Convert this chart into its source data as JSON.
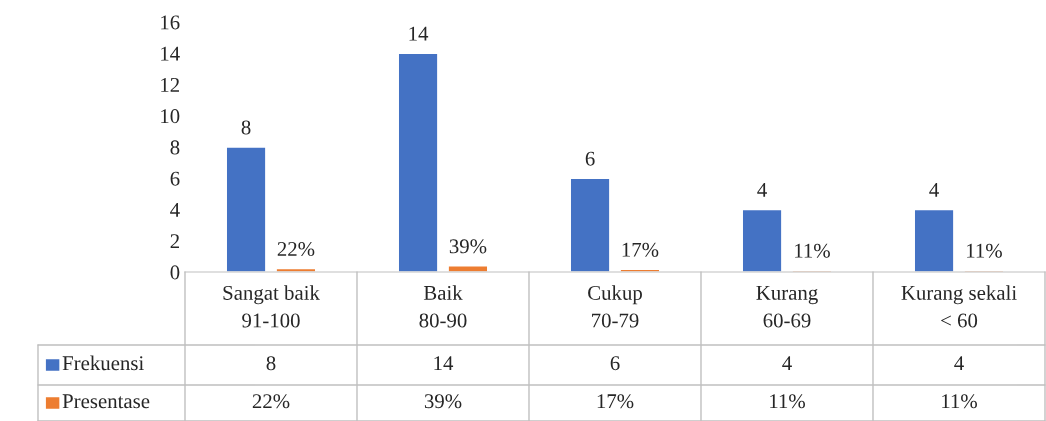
{
  "chart_data": {
    "type": "bar",
    "categories": [
      "Sangat baik\n91-100",
      "Baik\n80-90",
      "Cukup\n70-79",
      "Kurang\n60-69",
      "Kurang sekali\n< 60"
    ],
    "series": [
      {
        "name": "Frekuensi",
        "color": "#4472c4",
        "values": [
          8,
          14,
          6,
          4,
          4
        ],
        "value_labels": [
          "8",
          "14",
          "6",
          "4",
          "4"
        ]
      },
      {
        "name": "Presentase",
        "color": "#ed7d31",
        "values": [
          0.22,
          0.39,
          0.17,
          0.11,
          0.11
        ],
        "value_labels": [
          "22%",
          "39%",
          "17%",
          "11%",
          "11%"
        ]
      }
    ],
    "ylim": [
      0,
      16
    ],
    "yticks": [
      0,
      2,
      4,
      6,
      8,
      10,
      12,
      14,
      16
    ],
    "grid": false,
    "legend": "bottom"
  }
}
